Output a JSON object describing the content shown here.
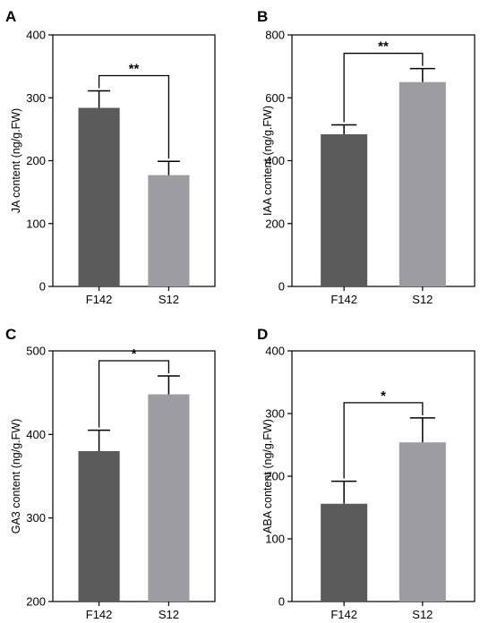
{
  "colors": {
    "F142": "#5b5b5b",
    "S12": "#9d9ca2",
    "axis": "#000000"
  },
  "chart_data": [
    {
      "type": "bar",
      "panel": "A",
      "categories": [
        "F142",
        "S12"
      ],
      "values": [
        284,
        177
      ],
      "errors": [
        27,
        22
      ],
      "ylabel": "JA content (ng/g.FW)",
      "ylim": [
        0,
        400
      ],
      "yticks": [
        "0",
        "100",
        "200",
        "300",
        "400"
      ],
      "significance": "**",
      "grid": false
    },
    {
      "type": "bar",
      "panel": "B",
      "categories": [
        "F142",
        "S12"
      ],
      "values": [
        484,
        650
      ],
      "errors": [
        30,
        43
      ],
      "ylabel": "IAA content (ng/g.FW)",
      "ylim": [
        0,
        800
      ],
      "yticks": [
        "0",
        "200",
        "400",
        "600",
        "800"
      ],
      "significance": "**",
      "grid": false
    },
    {
      "type": "bar",
      "panel": "C",
      "categories": [
        "F142",
        "S12"
      ],
      "values": [
        380,
        448
      ],
      "errors": [
        25,
        22
      ],
      "ylabel": "GA3 content (ng/g.FW)",
      "ylim": [
        200,
        500
      ],
      "yticks": [
        "200",
        "300",
        "400",
        "500"
      ],
      "significance": "*",
      "grid": false
    },
    {
      "type": "bar",
      "panel": "D",
      "categories": [
        "F142",
        "S12"
      ],
      "values": [
        156,
        254
      ],
      "errors": [
        36,
        39
      ],
      "ylabel": "ABA content (ng/g.FW)",
      "ylim": [
        0,
        400
      ],
      "yticks": [
        "0",
        "100",
        "200",
        "300",
        "400"
      ],
      "significance": "*",
      "grid": false
    }
  ]
}
